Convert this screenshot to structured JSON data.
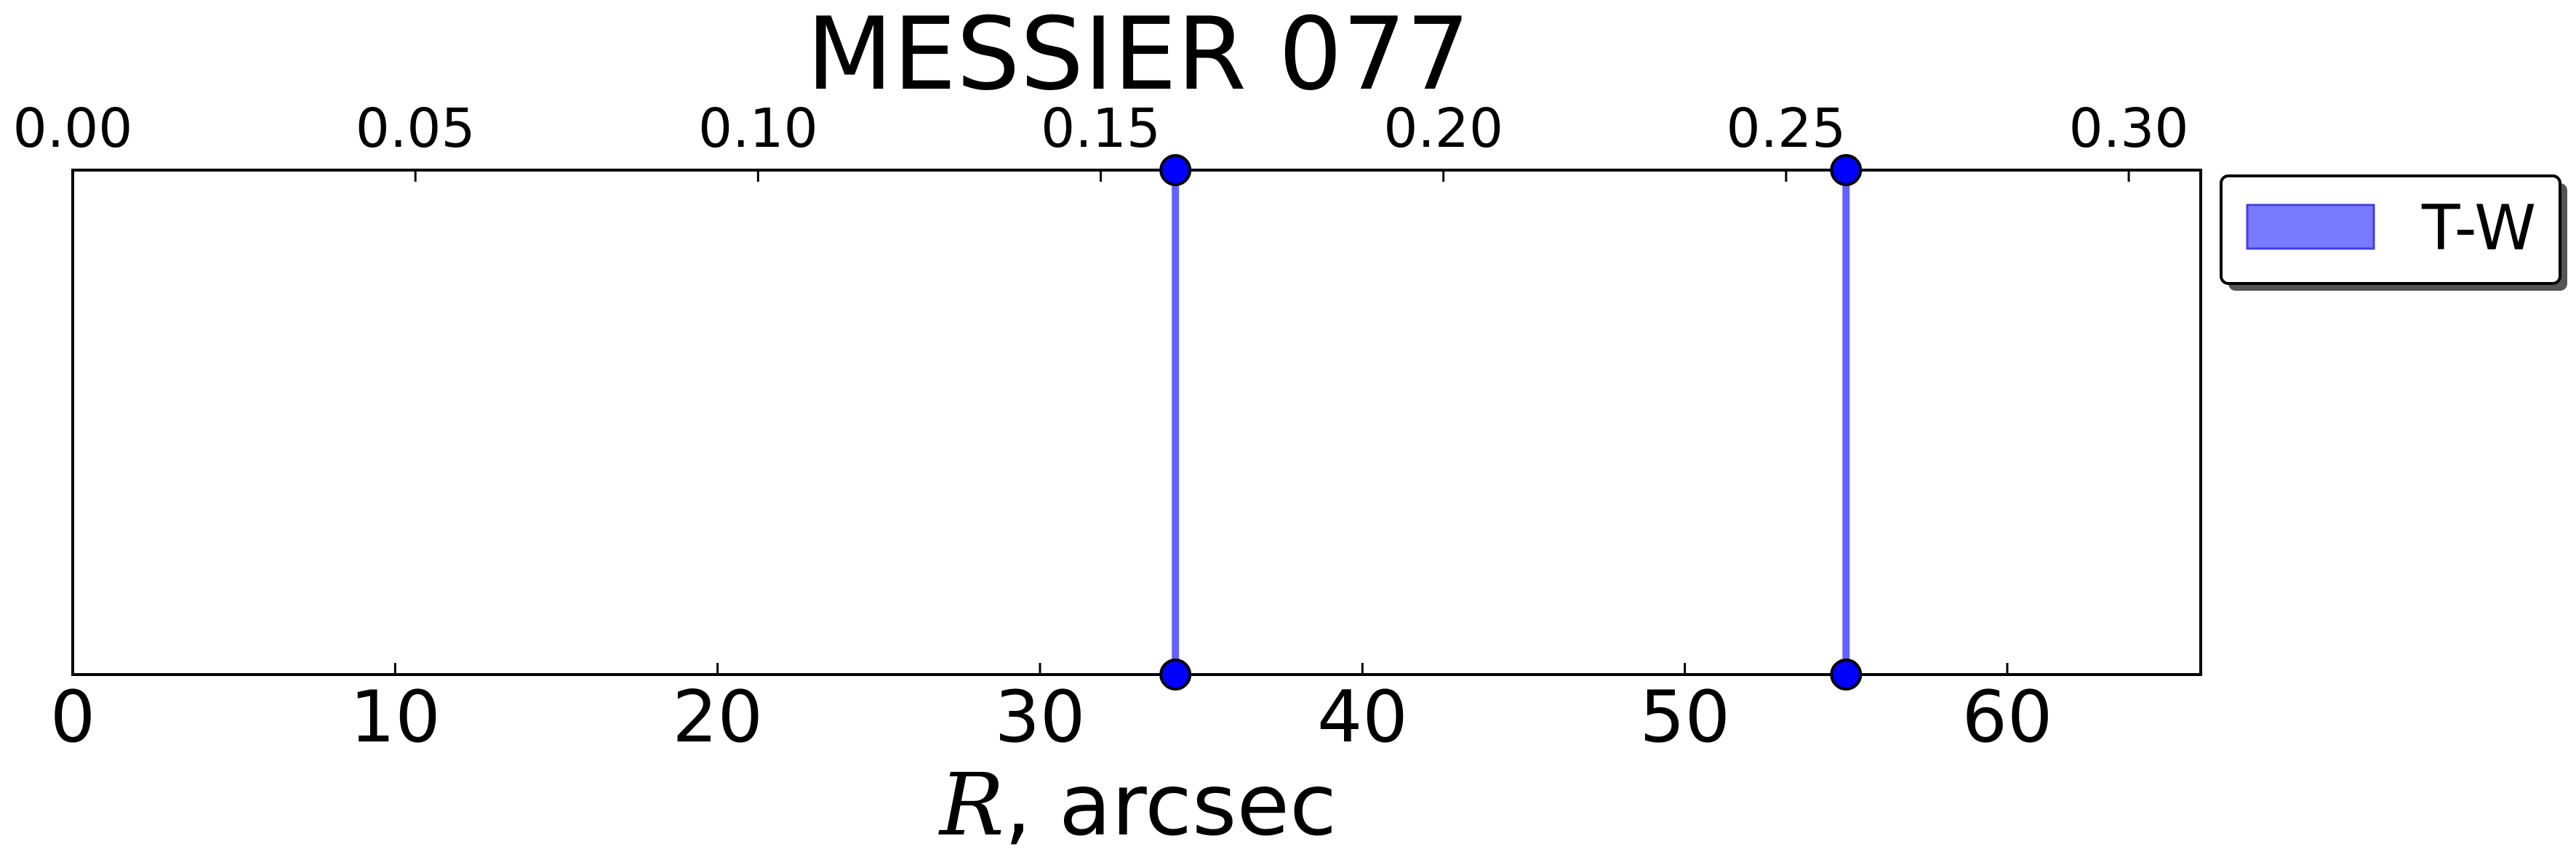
{
  "chart_data": {
    "type": "line",
    "title": "MESSIER 077",
    "xlabel": {
      "var": "R",
      "rest": ", arcsec"
    },
    "xlim": [
      0,
      66
    ],
    "x_ticks": [
      0,
      10,
      20,
      30,
      40,
      50,
      60
    ],
    "x_tick_labels": [
      "0",
      "10",
      "20",
      "30",
      "40",
      "50",
      "60"
    ],
    "top_axis": {
      "lim": [
        0,
        0.3105
      ],
      "ticks": [
        0.0,
        0.05,
        0.1,
        0.15,
        0.2,
        0.25,
        0.3
      ],
      "tick_labels": [
        "0.00",
        "0.05",
        "0.10",
        "0.15",
        "0.20",
        "0.25",
        "0.30"
      ]
    },
    "y_ticks_visible": false,
    "grid": false,
    "legend_position": "outside-right-top",
    "series": [
      {
        "name": "T-W",
        "color": "#5a5aff",
        "marker_color": "#0000ff",
        "vertical_lines_x": [
          34.2,
          55.0
        ]
      }
    ]
  }
}
